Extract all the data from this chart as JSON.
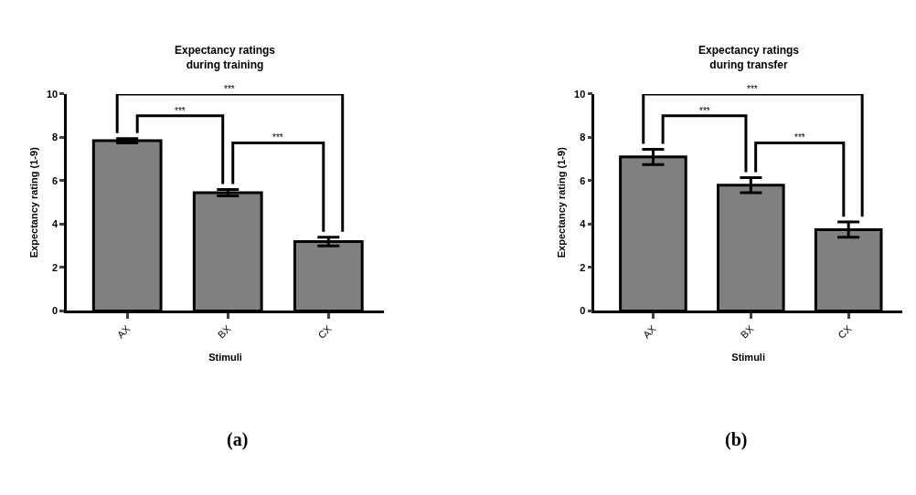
{
  "chart_data": [
    {
      "type": "bar",
      "title": "Expectancy ratings\nduring training",
      "xlabel": "Stimuli",
      "ylabel": "Expectancy rating (1-9)",
      "categories": [
        "AX",
        "BX",
        "CX"
      ],
      "values": [
        7.85,
        5.45,
        3.2
      ],
      "errors": [
        0.1,
        0.15,
        0.2
      ],
      "color": "#808080",
      "ylim": [
        0,
        10
      ],
      "yticks": [
        0,
        2,
        4,
        6,
        8,
        10
      ],
      "annotations": [
        "***",
        "***",
        "***",
        "(a)"
      ]
    },
    {
      "type": "bar",
      "title": "Expectancy ratings\nduring transfer",
      "xlabel": "Stimuli",
      "ylabel": "Expectancy rating (1-9)",
      "categories": [
        "AX",
        "BX",
        "CX"
      ],
      "values": [
        7.1,
        5.8,
        3.75
      ],
      "errors": [
        0.35,
        0.35,
        0.35
      ],
      "color": "#808080",
      "ylim": [
        0,
        10
      ],
      "yticks": [
        0,
        2,
        4,
        6,
        8,
        10
      ],
      "annotations": [
        "***",
        "***",
        "***",
        "(b)"
      ]
    }
  ]
}
